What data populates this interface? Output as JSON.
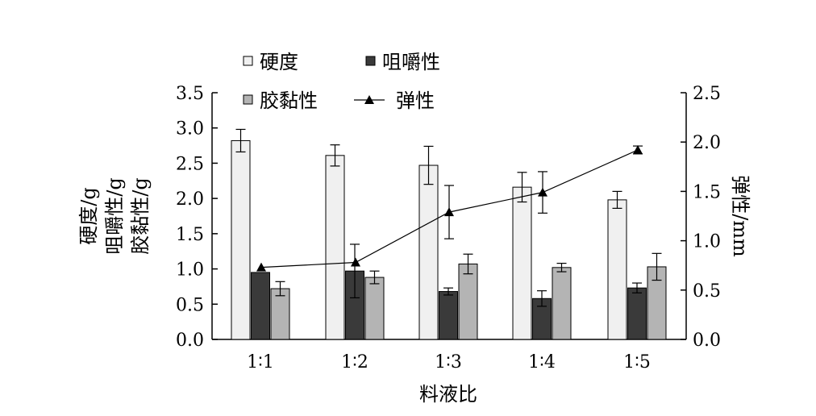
{
  "chart_data": {
    "type": "bar",
    "categories": [
      "1∶1",
      "1∶2",
      "1∶3",
      "1∶4",
      "1∶5"
    ],
    "xlabel": "料液比",
    "ylabel_left": [
      "硬度/g",
      "咀嚼性/g",
      "胶黏性/g"
    ],
    "ylabel_right": "弹性/mm",
    "ylim_left": [
      0,
      3.5
    ],
    "ylim_right": [
      0,
      2.5
    ],
    "yticks_left": [
      "0.0",
      "0.5",
      "1.0",
      "1.5",
      "2.0",
      "2.5",
      "3.0",
      "3.5"
    ],
    "yticks_right": [
      "0.0",
      "0.5",
      "1.0",
      "1.5",
      "2.0",
      "2.5"
    ],
    "grid": false,
    "legend_position": "top-left",
    "series": [
      {
        "name": "硬度",
        "kind": "bar",
        "axis": "left",
        "color": "#f0f0f0",
        "values": [
          2.82,
          2.61,
          2.47,
          2.16,
          1.98
        ],
        "errors": [
          0.16,
          0.15,
          0.27,
          0.21,
          0.12
        ]
      },
      {
        "name": "咀嚼性",
        "kind": "bar",
        "axis": "left",
        "color": "#3a3a3a",
        "values": [
          0.95,
          0.97,
          0.68,
          0.58,
          0.73
        ],
        "errors": [
          0.0,
          0.38,
          0.05,
          0.11,
          0.07
        ]
      },
      {
        "name": "胶黏性",
        "kind": "bar",
        "axis": "left",
        "color": "#b4b4b4",
        "values": [
          0.72,
          0.88,
          1.07,
          1.02,
          1.03
        ],
        "errors": [
          0.1,
          0.09,
          0.14,
          0.06,
          0.19
        ]
      },
      {
        "name": "弹性",
        "kind": "line",
        "axis": "right",
        "color": "#000000",
        "values": [
          0.73,
          0.78,
          1.29,
          1.49,
          1.92
        ],
        "errors": [
          0.0,
          0.0,
          0.27,
          0.21,
          0.04
        ]
      }
    ]
  }
}
